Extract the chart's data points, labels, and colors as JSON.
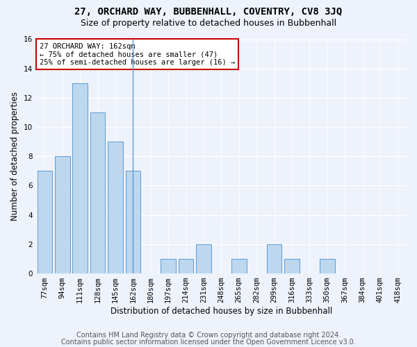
{
  "title1": "27, ORCHARD WAY, BUBBENHALL, COVENTRY, CV8 3JQ",
  "title2": "Size of property relative to detached houses in Bubbenhall",
  "xlabel": "Distribution of detached houses by size in Bubbenhall",
  "ylabel": "Number of detached properties",
  "categories": [
    "77sqm",
    "94sqm",
    "111sqm",
    "128sqm",
    "145sqm",
    "162sqm",
    "180sqm",
    "197sqm",
    "214sqm",
    "231sqm",
    "248sqm",
    "265sqm",
    "282sqm",
    "299sqm",
    "316sqm",
    "333sqm",
    "350sqm",
    "367sqm",
    "384sqm",
    "401sqm",
    "418sqm"
  ],
  "values": [
    7,
    8,
    13,
    11,
    9,
    7,
    0,
    1,
    1,
    2,
    0,
    1,
    0,
    2,
    1,
    0,
    1,
    0,
    0,
    0,
    0
  ],
  "highlight_index": 5,
  "bar_color": "#bdd7ee",
  "bar_edge_color": "#5b9bd5",
  "vline_color": "#5b9bd5",
  "annotation_line1": "27 ORCHARD WAY: 162sqm",
  "annotation_line2": "← 75% of detached houses are smaller (47)",
  "annotation_line3": "25% of semi-detached houses are larger (16) →",
  "annotation_box_facecolor": "#ffffff",
  "annotation_box_edgecolor": "#cc0000",
  "ylim": [
    0,
    16
  ],
  "yticks": [
    0,
    2,
    4,
    6,
    8,
    10,
    12,
    14,
    16
  ],
  "footer1": "Contains HM Land Registry data © Crown copyright and database right 2024.",
  "footer2": "Contains public sector information licensed under the Open Government Licence v3.0.",
  "bg_color": "#eef2fb",
  "grid_color": "#ffffff",
  "title1_fontsize": 10,
  "title2_fontsize": 9,
  "xlabel_fontsize": 8.5,
  "ylabel_fontsize": 8.5,
  "tick_fontsize": 7.5,
  "annotation_fontsize": 7.5,
  "footer_fontsize": 7
}
